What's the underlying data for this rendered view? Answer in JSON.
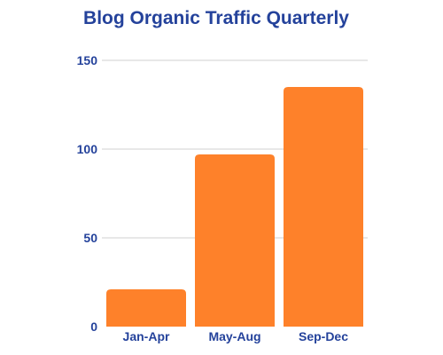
{
  "chart_data": {
    "type": "bar",
    "title": "Blog Organic Traffic Quarterly",
    "categories": [
      "Jan-Apr",
      "May-Aug",
      "Sep-Dec"
    ],
    "values": [
      21,
      97,
      135
    ],
    "ylim": [
      0,
      150
    ],
    "yticks": [
      0,
      50,
      100,
      150
    ],
    "xlabel": "",
    "ylabel": "",
    "grid": true,
    "legend": "none",
    "colors": {
      "bar": "#fe812a",
      "title": "#24429b",
      "labels": "#24429b",
      "grid": "#d0d0d0"
    }
  }
}
